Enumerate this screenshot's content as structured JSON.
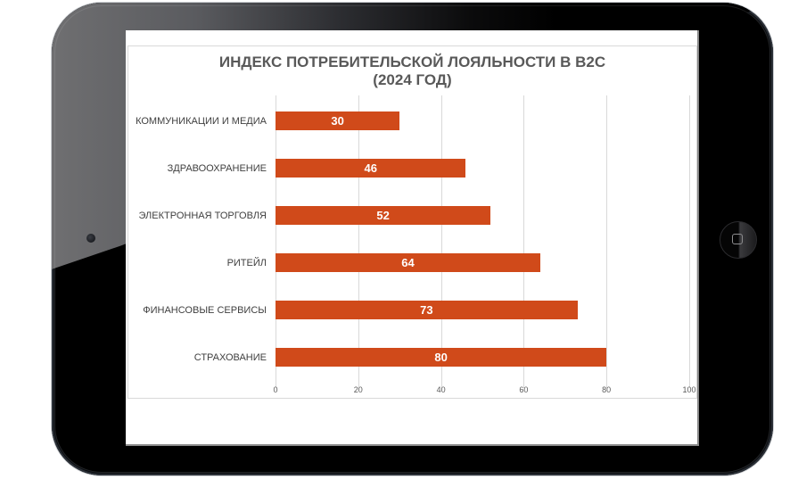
{
  "chart_data": {
    "type": "bar",
    "orientation": "horizontal",
    "title": "ИНДЕКС ПОТРЕБИТЕЛЬСКОЙ ЛОЯЛЬНОСТИ В B2C (2024 ГОД)",
    "title_lines": [
      "ИНДЕКС ПОТРЕБИТЕЛЬСКОЙ ЛОЯЛЬНОСТИ В B2C",
      "(2024 ГОД)"
    ],
    "categories": [
      "КОММУНИКАЦИИ И МЕДИА",
      "ЗДРАВООХРАНЕНИЕ",
      "ЭЛЕКТРОННАЯ ТОРГОВЛЯ",
      "РИТЕЙЛ",
      "ФИНАНСОВЫЕ СЕРВИСЫ",
      "СТРАХОВАНИЕ"
    ],
    "values": [
      30,
      46,
      52,
      64,
      73,
      80
    ],
    "data_labels": [
      "30",
      "46",
      "52",
      "64",
      "73",
      "80"
    ],
    "xlabel": "",
    "ylabel": "",
    "xlim": [
      0,
      100
    ],
    "x_ticks": [
      "0",
      "20",
      "40",
      "60",
      "80",
      "100"
    ],
    "grid": "vertical",
    "legend": "none",
    "bar_color": "#d04a1a"
  },
  "device": {
    "type": "tablet",
    "home_button": "home-button",
    "camera": "front-camera"
  }
}
